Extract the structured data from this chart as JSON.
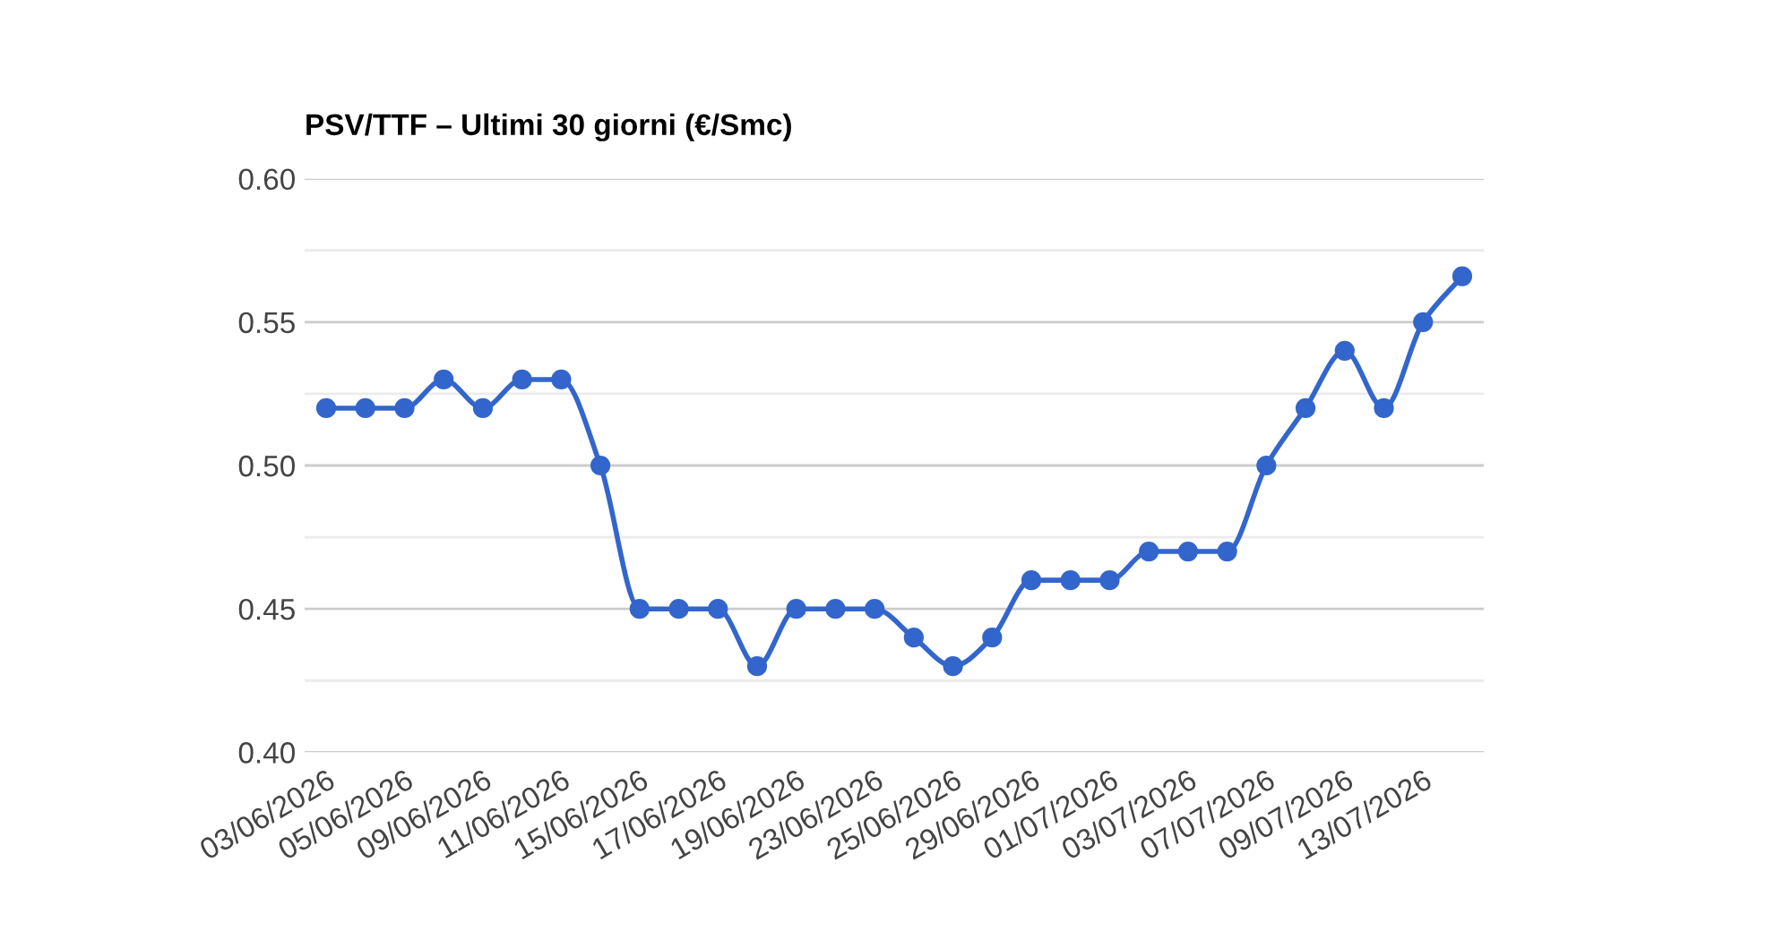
{
  "chart_data": {
    "type": "line",
    "title": "PSV/TTF – Ultimi 30 giorni (€/Smc)",
    "categories": [
      "03/06/2026",
      null,
      "05/06/2026",
      null,
      "09/06/2026",
      null,
      "11/06/2026",
      null,
      "15/06/2026",
      null,
      "17/06/2026",
      null,
      "19/06/2026",
      null,
      "23/06/2026",
      null,
      "25/06/2026",
      null,
      "29/06/2026",
      null,
      "01/07/2026",
      null,
      "03/07/2026",
      null,
      "07/07/2026",
      null,
      "09/07/2026",
      null,
      "13/07/2026",
      null
    ],
    "series": [
      {
        "color": "#3366cc",
        "values": [
          0.52,
          0.52,
          0.52,
          0.53,
          0.52,
          0.53,
          0.53,
          0.5,
          0.45,
          0.45,
          0.45,
          0.43,
          0.45,
          0.45,
          0.45,
          0.44,
          0.43,
          0.44,
          0.46,
          0.46,
          0.46,
          0.47,
          0.47,
          0.47,
          0.5,
          0.52,
          0.54,
          0.52,
          0.55,
          0.566
        ]
      }
    ],
    "ylim": [
      0.4,
      0.6
    ],
    "yticks": [
      {
        "value": 0.4,
        "label": "0.40"
      },
      {
        "value": 0.425,
        "label": null
      },
      {
        "value": 0.45,
        "label": "0.45"
      },
      {
        "value": 0.475,
        "label": null
      },
      {
        "value": 0.5,
        "label": "0.50"
      },
      {
        "value": 0.525,
        "label": null
      },
      {
        "value": 0.55,
        "label": "0.55"
      },
      {
        "value": 0.575,
        "label": null
      },
      {
        "value": 0.6,
        "label": "0.60"
      }
    ],
    "grid": "y",
    "marker": "circle",
    "line_style": "solid",
    "legend": false
  }
}
